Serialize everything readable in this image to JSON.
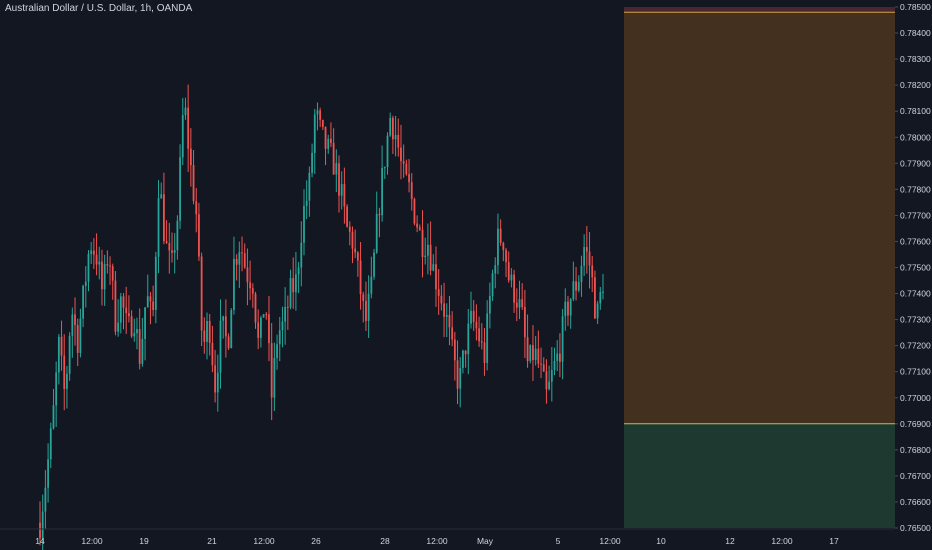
{
  "header": {
    "title": "Australian Dollar / U.S. Dollar, 1h, OANDA"
  },
  "colors": {
    "background": "#131722",
    "up": "#26a69a",
    "down": "#ef5350",
    "text": "#d1d4dc",
    "zone_top": "#4a2630",
    "zone_mid": "#43301f",
    "zone_low": "#1e3a30",
    "zone_line_top": "#d4a24a",
    "zone_line_low": "#b6c25c"
  },
  "chart_data": {
    "type": "candlestick",
    "title": "Australian Dollar / U.S. Dollar, 1h, OANDA",
    "ylim": [
      0.765,
      0.785
    ],
    "y_ticks": [
      "0.78500",
      "0.78400",
      "0.78300",
      "0.78200",
      "0.78100",
      "0.78000",
      "0.77900",
      "0.77800",
      "0.77700",
      "0.77600",
      "0.77500",
      "0.77400",
      "0.77300",
      "0.77200",
      "0.77100",
      "0.77000",
      "0.76900",
      "0.76800",
      "0.76700",
      "0.76600",
      "0.76500"
    ],
    "x_ticks": [
      "14",
      "12:00",
      "19",
      "21",
      "12:00",
      "26",
      "28",
      "12:00",
      "May",
      "5",
      "12:00",
      "10",
      "12",
      "12:00",
      "17"
    ],
    "zones": [
      {
        "from": 0.7848,
        "to": 0.785,
        "color": "zone_top"
      },
      {
        "from": 0.769,
        "to": 0.7848,
        "color": "zone_mid"
      },
      {
        "from": 0.765,
        "to": 0.769,
        "color": "zone_low"
      }
    ],
    "grid": false,
    "price_path": [
      0.7652,
      0.767,
      0.769,
      0.772,
      0.77,
      0.7735,
      0.7722,
      0.774,
      0.776,
      0.7755,
      0.774,
      0.7758,
      0.773,
      0.7738,
      0.7725,
      0.7732,
      0.7715,
      0.774,
      0.7728,
      0.7785,
      0.776,
      0.7748,
      0.777,
      0.7815,
      0.779,
      0.777,
      0.7718,
      0.773,
      0.7705,
      0.7728,
      0.772,
      0.7752,
      0.776,
      0.7748,
      0.7745,
      0.7718,
      0.774,
      0.77,
      0.7725,
      0.7728,
      0.774,
      0.7745,
      0.777,
      0.778,
      0.781,
      0.78,
      0.7795,
      0.779,
      0.778,
      0.7765,
      0.776,
      0.7745,
      0.7728,
      0.7742,
      0.777,
      0.779,
      0.7808,
      0.78,
      0.7785,
      0.778,
      0.777,
      0.776,
      0.776,
      0.7748,
      0.774,
      0.773,
      0.7715,
      0.7705,
      0.772,
      0.773,
      0.7725,
      0.7715,
      0.774,
      0.776,
      0.7762,
      0.7745,
      0.774,
      0.7732,
      0.7712,
      0.7718,
      0.771,
      0.77,
      0.771,
      0.7718,
      0.7732,
      0.774,
      0.7745,
      0.7758,
      0.775,
      0.773,
      0.7745
    ]
  }
}
